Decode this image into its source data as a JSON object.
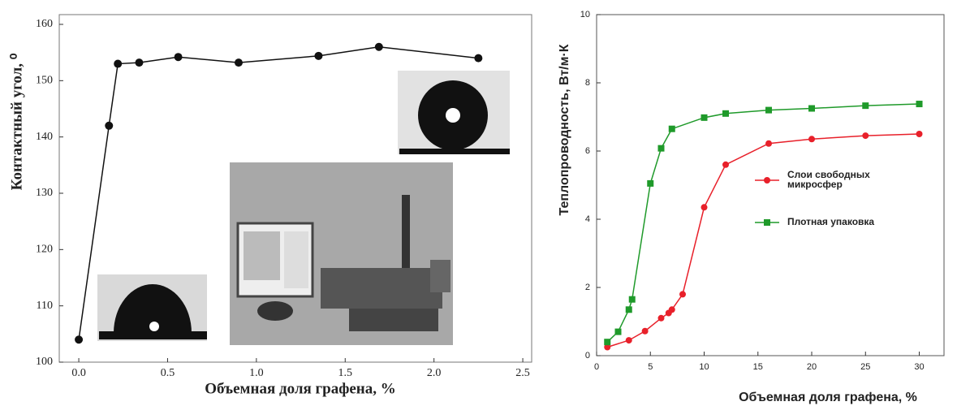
{
  "chart_data": [
    {
      "type": "line",
      "x_label": "Объемная доля графена, %",
      "y_label": "Контактный угол, ⁰",
      "x": [
        0,
        0.17,
        0.22,
        0.34,
        0.56,
        0.9,
        1.35,
        1.69,
        2.25
      ],
      "values": [
        104,
        142,
        153,
        153.2,
        154.2,
        153.2,
        154.4,
        156,
        154
      ],
      "color": "#111111",
      "xlim": [
        -0.11,
        2.55
      ],
      "ylim": [
        100,
        160
      ],
      "xticks": [
        {
          "value": 0,
          "label": "0.0"
        },
        0.5,
        {
          "value": 1,
          "label": "1.0"
        },
        1.5,
        {
          "value": 2,
          "label": "2.0"
        },
        2.5
      ],
      "yticks": [
        100,
        110,
        120,
        130,
        140,
        150,
        160
      ]
    },
    {
      "type": "line",
      "x_label": "Объемная доля графена, %",
      "y_label": "Теплопроводность, Вт/м·К",
      "series": [
        {
          "name": "Слои свободных микросфер",
          "color": "#e8202a",
          "x": [
            1,
            3,
            4.5,
            6,
            6.7,
            7,
            8,
            10,
            12,
            16,
            20,
            25,
            30
          ],
          "values": [
            0.25,
            0.45,
            0.72,
            1.1,
            1.25,
            1.35,
            1.8,
            4.35,
            5.6,
            6.22,
            6.35,
            6.45,
            6.5
          ]
        },
        {
          "name": "Плотная упаковка",
          "color": "#1f9a2a",
          "x": [
            1,
            2,
            3,
            3.3,
            5,
            6,
            7,
            10,
            12,
            16,
            20,
            25,
            30
          ],
          "values": [
            0.4,
            0.7,
            1.35,
            1.65,
            5.05,
            6.08,
            6.65,
            6.98,
            7.1,
            7.2,
            7.25,
            7.33,
            7.38
          ]
        }
      ],
      "xlim": [
        0,
        32.3
      ],
      "ylim": [
        0,
        10
      ],
      "xticks": [
        0,
        5,
        10,
        15,
        20,
        25,
        30
      ],
      "yticks": [
        0,
        2,
        4,
        6,
        8,
        10
      ]
    }
  ]
}
